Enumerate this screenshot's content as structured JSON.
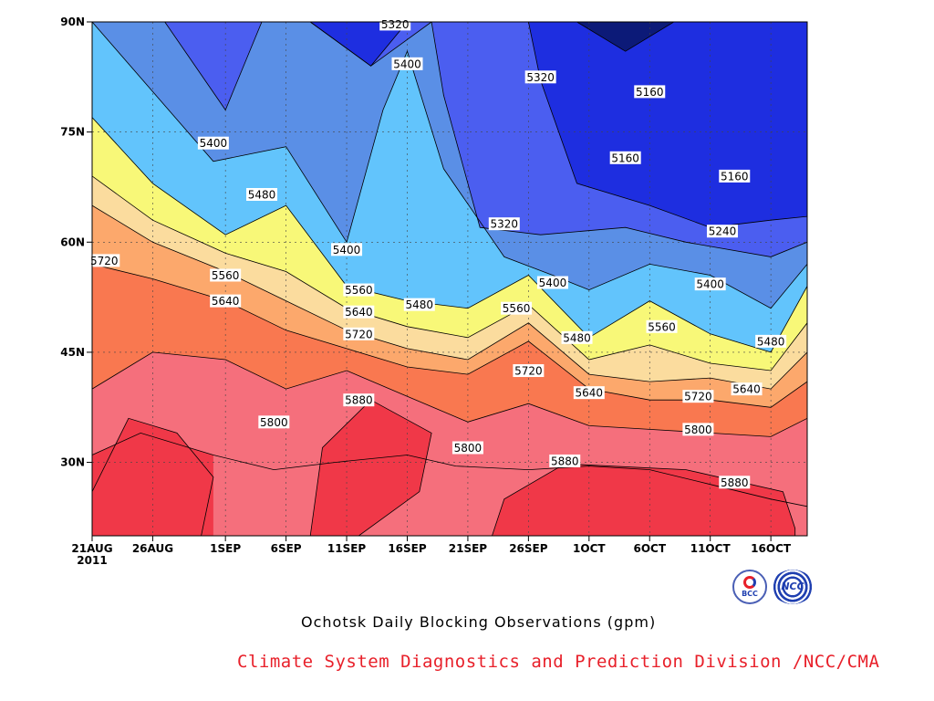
{
  "chart_data": {
    "type": "contour",
    "title": "",
    "xlabel": "",
    "ylabel": "",
    "x_start": "2011-08-21",
    "x_end": "2011-10-19",
    "x_ticks": [
      {
        "date": "2011-08-21",
        "label": "21AUG",
        "sub": "2011"
      },
      {
        "date": "2011-08-26",
        "label": "26AUG"
      },
      {
        "date": "2011-09-01",
        "label": "1SEP"
      },
      {
        "date": "2011-09-06",
        "label": "6SEP"
      },
      {
        "date": "2011-09-11",
        "label": "11SEP"
      },
      {
        "date": "2011-09-16",
        "label": "16SEP"
      },
      {
        "date": "2011-09-21",
        "label": "21SEP"
      },
      {
        "date": "2011-09-26",
        "label": "26SEP"
      },
      {
        "date": "2011-10-01",
        "label": "1OCT"
      },
      {
        "date": "2011-10-06",
        "label": "6OCT"
      },
      {
        "date": "2011-10-11",
        "label": "11OCT"
      },
      {
        "date": "2011-10-16",
        "label": "16OCT"
      }
    ],
    "y_range": [
      20,
      90
    ],
    "y_ticks": [
      {
        "value": 30,
        "label": "30N"
      },
      {
        "value": 45,
        "label": "45N"
      },
      {
        "value": 60,
        "label": "60N"
      },
      {
        "value": 75,
        "label": "75N"
      },
      {
        "value": 90,
        "label": "90N"
      }
    ],
    "grid": true,
    "levels": [
      5160,
      5240,
      5320,
      5400,
      5480,
      5560,
      5640,
      5720,
      5800,
      5880
    ],
    "fill_colors": {
      "below_5160": "#0c1a78",
      "5160_5240": "#1e2ee0",
      "5240_5320": "#4b5ef0",
      "5320_5400": "#5a8fe6",
      "5400_5480": "#62c4fc",
      "5480_5560": "#f8f878",
      "5560_5640": "#fbdc9e",
      "5640_5720": "#fca86c",
      "5720_5800": "#f97850",
      "5800_5880": "#f56f7c",
      "above_5880": "#f03848"
    },
    "contour_lines": [
      {
        "value": 5880,
        "points": [
          [
            "2011-08-21",
            31
          ],
          [
            "2011-08-25",
            34
          ],
          [
            "2011-08-31",
            31
          ],
          [
            "2011-09-05",
            29
          ],
          [
            "2011-09-10",
            30
          ],
          [
            "2011-09-16",
            31
          ],
          [
            "2011-09-20",
            29.5
          ],
          [
            "2011-09-26",
            29
          ],
          [
            "2011-10-01",
            29.5
          ],
          [
            "2011-10-06",
            29
          ],
          [
            "2011-10-11",
            27
          ],
          [
            "2011-10-16",
            25
          ],
          [
            "2011-10-19",
            24
          ]
        ]
      },
      {
        "value": 5800,
        "points": [
          [
            "2011-08-21",
            40
          ],
          [
            "2011-08-26",
            45
          ],
          [
            "2011-09-01",
            44
          ],
          [
            "2011-09-06",
            40
          ],
          [
            "2011-09-11",
            42.5
          ],
          [
            "2011-09-16",
            39
          ],
          [
            "2011-09-21",
            35.5
          ],
          [
            "2011-09-26",
            38
          ],
          [
            "2011-10-01",
            35
          ],
          [
            "2011-10-06",
            34.5
          ],
          [
            "2011-10-11",
            34
          ],
          [
            "2011-10-16",
            33.5
          ],
          [
            "2011-10-19",
            36
          ]
        ]
      },
      {
        "value": 5720,
        "points": [
          [
            "2011-08-21",
            57
          ],
          [
            "2011-08-26",
            55
          ],
          [
            "2011-09-01",
            52
          ],
          [
            "2011-09-06",
            48
          ],
          [
            "2011-09-11",
            45.5
          ],
          [
            "2011-09-16",
            43
          ],
          [
            "2011-09-21",
            42
          ],
          [
            "2011-09-26",
            46.5
          ],
          [
            "2011-10-01",
            40
          ],
          [
            "2011-10-06",
            38.5
          ],
          [
            "2011-10-11",
            38.5
          ],
          [
            "2011-10-16",
            37.5
          ],
          [
            "2011-10-19",
            41
          ]
        ]
      },
      {
        "value": 5640,
        "points": [
          [
            "2011-08-21",
            65
          ],
          [
            "2011-08-26",
            60
          ],
          [
            "2011-09-01",
            56
          ],
          [
            "2011-09-06",
            52
          ],
          [
            "2011-09-11",
            48
          ],
          [
            "2011-09-16",
            45.5
          ],
          [
            "2011-09-21",
            44
          ],
          [
            "2011-09-26",
            49
          ],
          [
            "2011-10-01",
            42
          ],
          [
            "2011-10-06",
            41
          ],
          [
            "2011-10-11",
            41.5
          ],
          [
            "2011-10-16",
            40
          ],
          [
            "2011-10-19",
            45
          ]
        ]
      },
      {
        "value": 5560,
        "points": [
          [
            "2011-08-21",
            69
          ],
          [
            "2011-08-26",
            63
          ],
          [
            "2011-09-01",
            58.5
          ],
          [
            "2011-09-06",
            56
          ],
          [
            "2011-09-11",
            51
          ],
          [
            "2011-09-16",
            48.5
          ],
          [
            "2011-09-21",
            47
          ],
          [
            "2011-09-26",
            51.5
          ],
          [
            "2011-10-01",
            44
          ],
          [
            "2011-10-06",
            46
          ],
          [
            "2011-10-11",
            43.5
          ],
          [
            "2011-10-16",
            42.5
          ],
          [
            "2011-10-19",
            49
          ]
        ]
      },
      {
        "value": 5480,
        "points": [
          [
            "2011-08-21",
            77
          ],
          [
            "2011-08-26",
            68
          ],
          [
            "2011-09-01",
            61
          ],
          [
            "2011-09-06",
            65
          ],
          [
            "2011-09-11",
            54
          ],
          [
            "2011-09-16",
            52
          ],
          [
            "2011-09-21",
            51
          ],
          [
            "2011-09-26",
            55.5
          ],
          [
            "2011-10-01",
            47
          ],
          [
            "2011-10-06",
            52
          ],
          [
            "2011-10-11",
            47.5
          ],
          [
            "2011-10-16",
            45
          ],
          [
            "2011-10-19",
            54
          ]
        ]
      },
      {
        "value": 5400,
        "points": [
          [
            "2011-08-21",
            90
          ],
          [
            "2011-08-31",
            71
          ],
          [
            "2011-09-06",
            73
          ],
          [
            "2011-09-11",
            60
          ],
          [
            "2011-09-14",
            78
          ],
          [
            "2011-09-16",
            86
          ],
          [
            "2011-09-19",
            70
          ],
          [
            "2011-09-24",
            58
          ],
          [
            "2011-09-28",
            55.5
          ],
          [
            "2011-10-01",
            53.5
          ],
          [
            "2011-10-06",
            57
          ],
          [
            "2011-10-11",
            55.5
          ],
          [
            "2011-10-16",
            51
          ],
          [
            "2011-10-19",
            57
          ]
        ]
      },
      {
        "value": 5320,
        "points": [
          [
            "2011-08-21",
            90
          ],
          [
            "2011-08-27",
            90
          ],
          [
            "2011-09-01",
            78
          ],
          [
            "2011-09-04",
            90
          ],
          [
            "2011-09-08",
            90
          ],
          [
            "2011-09-13",
            84
          ],
          [
            "2011-09-18",
            90
          ],
          [
            "2011-09-19",
            80
          ],
          [
            "2011-09-22",
            62
          ],
          [
            "2011-09-27",
            61
          ],
          [
            "2011-10-04",
            62
          ],
          [
            "2011-10-09",
            60
          ],
          [
            "2011-10-16",
            58
          ],
          [
            "2011-10-19",
            60
          ]
        ]
      },
      {
        "value": 5240,
        "points": [
          [
            "2011-09-08",
            90
          ],
          [
            "2011-09-13",
            84
          ],
          [
            "2011-09-16",
            90
          ]
        ]
      },
      {
        "value": 5240,
        "points": [
          [
            "2011-09-26",
            90
          ],
          [
            "2011-09-27",
            82
          ],
          [
            "2011-09-30",
            68
          ],
          [
            "2011-10-06",
            65
          ],
          [
            "2011-10-11",
            62
          ],
          [
            "2011-10-16",
            63
          ],
          [
            "2011-10-19",
            63.5
          ]
        ]
      },
      {
        "value": 5160,
        "points": [
          [
            "2011-09-30",
            90
          ],
          [
            "2011-10-04",
            86
          ],
          [
            "2011-10-08",
            90
          ]
        ]
      }
    ],
    "contour_labels": [
      {
        "text": "5320",
        "date": "2011-09-15",
        "lat": 89.7
      },
      {
        "text": "5400",
        "date": "2011-09-16",
        "lat": 84.3
      },
      {
        "text": "5320",
        "date": "2011-09-27",
        "lat": 82.5
      },
      {
        "text": "5160",
        "date": "2011-10-06",
        "lat": 80.5
      },
      {
        "text": "5400",
        "date": "2011-08-31",
        "lat": 73.5
      },
      {
        "text": "5160",
        "date": "2011-10-04",
        "lat": 71.5
      },
      {
        "text": "5160",
        "date": "2011-10-13",
        "lat": 69
      },
      {
        "text": "5480",
        "date": "2011-09-04",
        "lat": 66.5
      },
      {
        "text": "5320",
        "date": "2011-09-24",
        "lat": 62.5
      },
      {
        "text": "5240",
        "date": "2011-10-12",
        "lat": 61.5
      },
      {
        "text": "5720",
        "date": "2011-08-22",
        "lat": 57.5
      },
      {
        "text": "5400",
        "date": "2011-09-11",
        "lat": 59
      },
      {
        "text": "5560",
        "date": "2011-09-01",
        "lat": 55.5
      },
      {
        "text": "5400",
        "date": "2011-09-28",
        "lat": 54.5
      },
      {
        "text": "5400",
        "date": "2011-10-11",
        "lat": 54.3
      },
      {
        "text": "5560",
        "date": "2011-09-12",
        "lat": 53.5
      },
      {
        "text": "5640",
        "date": "2011-09-01",
        "lat": 52
      },
      {
        "text": "5480",
        "date": "2011-09-17",
        "lat": 51.5
      },
      {
        "text": "5560",
        "date": "2011-09-25",
        "lat": 51
      },
      {
        "text": "5640",
        "date": "2011-09-12",
        "lat": 50.5
      },
      {
        "text": "5560",
        "date": "2011-10-07",
        "lat": 48.5
      },
      {
        "text": "5720",
        "date": "2011-09-12",
        "lat": 47.5
      },
      {
        "text": "5480",
        "date": "2011-09-30",
        "lat": 47
      },
      {
        "text": "5480",
        "date": "2011-10-16",
        "lat": 46.5
      },
      {
        "text": "5720",
        "date": "2011-09-26",
        "lat": 42.5
      },
      {
        "text": "5640",
        "date": "2011-10-01",
        "lat": 39.5
      },
      {
        "text": "5720",
        "date": "2011-10-10",
        "lat": 39
      },
      {
        "text": "5640",
        "date": "2011-10-14",
        "lat": 40
      },
      {
        "text": "5880",
        "date": "2011-09-12",
        "lat": 38.5
      },
      {
        "text": "5800",
        "date": "2011-09-05",
        "lat": 35.5
      },
      {
        "text": "5800",
        "date": "2011-10-10",
        "lat": 34.5
      },
      {
        "text": "5800",
        "date": "2011-09-21",
        "lat": 32
      },
      {
        "text": "5880",
        "date": "2011-09-29",
        "lat": 30.2
      },
      {
        "text": "5880",
        "date": "2011-10-13",
        "lat": 27.3
      }
    ]
  },
  "caption": "Ochotsk Daily Blocking Observations (gpm)",
  "credit": "Climate System Diagnostics and Prediction Division /NCC/CMA",
  "logos": {
    "bcc_text": "BCC",
    "ncc_text": "NCC"
  }
}
